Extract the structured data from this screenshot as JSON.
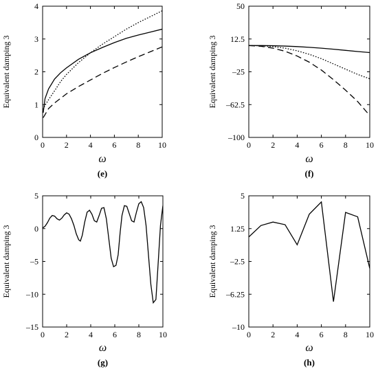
{
  "chart_data": [
    {
      "panel": "(e)",
      "type": "line",
      "xlabel": "ω",
      "ylabel": "Equivalent damping 3",
      "xlim": [
        0,
        10
      ],
      "ylim": [
        0,
        4
      ],
      "xticks": [
        0,
        2,
        4,
        6,
        8,
        10
      ],
      "yticks": [
        0,
        1,
        2,
        3,
        4
      ],
      "series": [
        {
          "style": "solid",
          "x": [
            0.05,
            0.2,
            0.5,
            1,
            1.5,
            2,
            3,
            4,
            5,
            6,
            7,
            8,
            9,
            10
          ],
          "y": [
            0.75,
            1.18,
            1.48,
            1.78,
            1.97,
            2.12,
            2.38,
            2.58,
            2.74,
            2.89,
            3.02,
            3.12,
            3.21,
            3.3
          ]
        },
        {
          "style": "dotted",
          "x": [
            0.05,
            0.2,
            0.5,
            1,
            1.5,
            2,
            3,
            4,
            5,
            6,
            7,
            8,
            9,
            10
          ],
          "y": [
            0.85,
            0.98,
            1.15,
            1.42,
            1.7,
            1.92,
            2.28,
            2.58,
            2.84,
            3.07,
            3.3,
            3.5,
            3.68,
            3.86
          ]
        },
        {
          "style": "dashed",
          "x": [
            0.05,
            0.5,
            1,
            2,
            3,
            4,
            5,
            6,
            7,
            8,
            9,
            10
          ],
          "y": [
            0.6,
            0.88,
            1.05,
            1.33,
            1.55,
            1.75,
            1.95,
            2.13,
            2.3,
            2.46,
            2.61,
            2.76
          ]
        }
      ]
    },
    {
      "panel": "(f)",
      "type": "line",
      "xlabel": "ω",
      "ylabel": "Equivalent damping 3",
      "xlim": [
        0,
        10
      ],
      "ylim": [
        -100,
        50
      ],
      "xticks": [
        0,
        2,
        4,
        6,
        8,
        10
      ],
      "yticks": [
        50,
        12.5,
        -25,
        -62.5,
        -100
      ],
      "yticklabels": [
        "50",
        "12.5",
        "–25",
        "–62.5",
        "–100"
      ],
      "series": [
        {
          "style": "solid",
          "x": [
            0,
            1,
            2,
            3,
            4,
            5,
            6,
            7,
            8,
            9,
            10
          ],
          "y": [
            5,
            5,
            4.8,
            4.4,
            3.8,
            3,
            2,
            0.8,
            -0.5,
            -1.8,
            -3
          ]
        },
        {
          "style": "dotted",
          "x": [
            0,
            1,
            2,
            3,
            4,
            5,
            6,
            7,
            8,
            9,
            10
          ],
          "y": [
            5,
            4.7,
            3.8,
            2,
            -1,
            -5,
            -10,
            -16,
            -22,
            -28,
            -33
          ]
        },
        {
          "style": "dashed",
          "x": [
            0,
            1,
            2,
            3,
            4,
            5,
            6,
            7,
            8,
            9,
            10
          ],
          "y": [
            5,
            4.2,
            2,
            -1.5,
            -7,
            -14,
            -23,
            -34,
            -46,
            -59,
            -75
          ]
        }
      ]
    },
    {
      "panel": "(g)",
      "type": "line",
      "xlabel": "ω",
      "ylabel": "Equivalent damping 3",
      "xlim": [
        0,
        10
      ],
      "ylim": [
        -15,
        5
      ],
      "xticks": [
        0,
        2,
        4,
        6,
        8,
        10
      ],
      "yticks": [
        5,
        0,
        -5,
        -10,
        -15
      ],
      "yticklabels": [
        "5",
        "0",
        "–5",
        "–10",
        "–15"
      ],
      "series": [
        {
          "style": "solid",
          "x": [
            0,
            0.2,
            0.4,
            0.6,
            0.8,
            1.0,
            1.2,
            1.4,
            1.6,
            1.8,
            2.0,
            2.2,
            2.4,
            2.6,
            2.8,
            3.0,
            3.14,
            3.3,
            3.5,
            3.7,
            3.9,
            4.1,
            4.3,
            4.5,
            4.7,
            4.9,
            5.1,
            5.3,
            5.5,
            5.7,
            5.9,
            6.1,
            6.28,
            6.45,
            6.6,
            6.8,
            7.0,
            7.2,
            7.4,
            7.6,
            7.8,
            8.0,
            8.2,
            8.4,
            8.6,
            8.8,
            9.0,
            9.2,
            9.42,
            9.6,
            9.8,
            10.0
          ],
          "y": [
            0.1,
            0.35,
            0.9,
            1.6,
            2.0,
            1.9,
            1.5,
            1.3,
            1.6,
            2.1,
            2.4,
            2.2,
            1.5,
            0.5,
            -0.8,
            -1.7,
            -1.9,
            -1.0,
            1.0,
            2.5,
            2.8,
            2.2,
            1.2,
            1.0,
            2.0,
            3.1,
            3.2,
            1.5,
            -1.5,
            -4.5,
            -5.8,
            -5.6,
            -4.0,
            -0.5,
            2.0,
            3.5,
            3.4,
            2.3,
            1.2,
            1.0,
            2.5,
            3.8,
            4.1,
            3.2,
            0.5,
            -4.0,
            -8.5,
            -11.3,
            -10.8,
            -5.5,
            0.5,
            3.5
          ]
        }
      ]
    },
    {
      "panel": "(h)",
      "type": "line",
      "xlabel": "ω",
      "ylabel": "Equivalent damping 3",
      "xlim": [
        0,
        10
      ],
      "ylim": [
        -10,
        5
      ],
      "xticks": [
        0,
        2,
        4,
        6,
        8,
        10
      ],
      "yticks": [
        5,
        1.25,
        -2.5,
        -6.25,
        -10
      ],
      "yticklabels": [
        "5",
        "1.25",
        "–2.5",
        "–6.25",
        "–10"
      ],
      "series": [
        {
          "style": "solid",
          "x": [
            0,
            1,
            2,
            3,
            4,
            5,
            6,
            7,
            8,
            9,
            10
          ],
          "y": [
            0.3,
            1.6,
            2.0,
            1.7,
            -0.6,
            2.9,
            4.3,
            -7.1,
            3.1,
            2.6,
            -3.3
          ]
        }
      ]
    }
  ]
}
